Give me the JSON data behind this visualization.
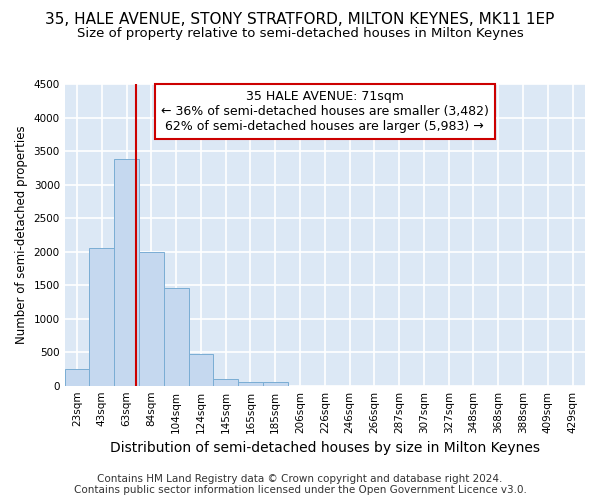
{
  "title": "35, HALE AVENUE, STONY STRATFORD, MILTON KEYNES, MK11 1EP",
  "subtitle": "Size of property relative to semi-detached houses in Milton Keynes",
  "xlabel": "Distribution of semi-detached houses by size in Milton Keynes",
  "ylabel": "Number of semi-detached properties",
  "footnote1": "Contains HM Land Registry data © Crown copyright and database right 2024.",
  "footnote2": "Contains public sector information licensed under the Open Government Licence v3.0.",
  "categories": [
    "23sqm",
    "43sqm",
    "63sqm",
    "84sqm",
    "104sqm",
    "124sqm",
    "145sqm",
    "165sqm",
    "185sqm",
    "206sqm",
    "226sqm",
    "246sqm",
    "266sqm",
    "287sqm",
    "307sqm",
    "327sqm",
    "348sqm",
    "368sqm",
    "388sqm",
    "409sqm",
    "429sqm"
  ],
  "values": [
    250,
    2050,
    3380,
    2000,
    1450,
    470,
    100,
    55,
    50,
    0,
    0,
    0,
    0,
    0,
    0,
    0,
    0,
    0,
    0,
    0,
    0
  ],
  "bar_color": "#c5d8ef",
  "bar_edge_color": "#7aadd4",
  "ylim": [
    0,
    4500
  ],
  "yticks": [
    0,
    500,
    1000,
    1500,
    2000,
    2500,
    3000,
    3500,
    4000,
    4500
  ],
  "property_line_color": "#cc0000",
  "annotation_line1": "35 HALE AVENUE: 71sqm",
  "annotation_line2": "← 36% of semi-detached houses are smaller (3,482)",
  "annotation_line3": "62% of semi-detached houses are larger (5,983) →",
  "annotation_box_color": "#cc0000",
  "fig_bg_color": "#ffffff",
  "plot_bg_color": "#dce8f5",
  "grid_color": "#ffffff",
  "title_fontsize": 11,
  "subtitle_fontsize": 9.5,
  "xlabel_fontsize": 10,
  "ylabel_fontsize": 8.5,
  "tick_fontsize": 7.5,
  "annotation_fontsize": 9,
  "footnote_fontsize": 7.5
}
